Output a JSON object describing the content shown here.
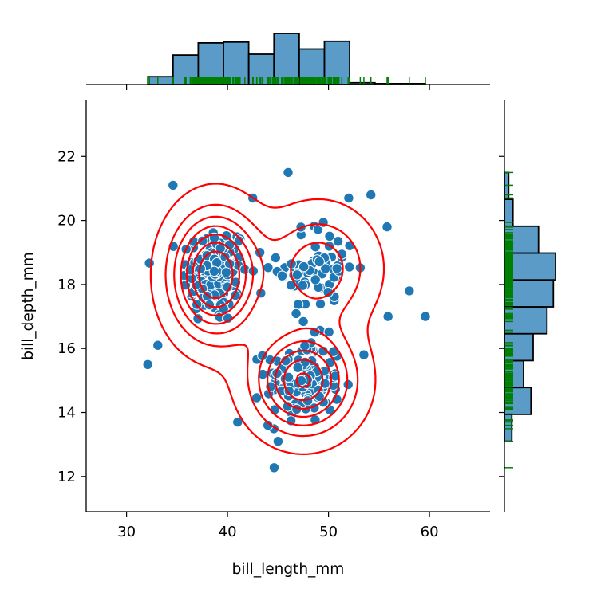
{
  "chart_data": {
    "type": "scatter",
    "subtype": "jointplot",
    "xlabel": "bill_length_mm",
    "ylabel": "bill_depth_mm",
    "xlim": [
      26,
      66
    ],
    "ylim": [
      10.9,
      23.75
    ],
    "xticks": [
      "30",
      "40",
      "50",
      "60"
    ],
    "yticks": [
      "12",
      "14",
      "16",
      "18",
      "20",
      "22"
    ],
    "grid": false,
    "point_color": "#1f77b4",
    "hist_color": "#5b9bc8",
    "contour_color": "#ff0000",
    "rug_color": "#008000",
    "clusters": [
      {
        "cx": 38.8,
        "cy": 18.3,
        "sx": 2.7,
        "sy": 1.2,
        "n": 146
      },
      {
        "cx": 47.5,
        "cy": 15.0,
        "sx": 3.1,
        "sy": 1.0,
        "n": 119
      },
      {
        "cx": 49.0,
        "cy": 18.5,
        "sx": 3.3,
        "sy": 1.1,
        "n": 68
      }
    ],
    "outliers": [
      [
        32.1,
        15.5
      ],
      [
        33.1,
        16.1
      ],
      [
        34.6,
        21.1
      ],
      [
        35.9,
        19.1
      ],
      [
        46.0,
        21.5
      ],
      [
        42.5,
        20.7
      ],
      [
        43.2,
        19.0
      ],
      [
        52.0,
        20.7
      ],
      [
        54.2,
        20.8
      ],
      [
        55.8,
        19.8
      ],
      [
        58.0,
        17.8
      ],
      [
        59.6,
        17.0
      ],
      [
        55.9,
        17.0
      ],
      [
        53.5,
        15.8
      ],
      [
        46.9,
        18.3
      ],
      [
        44.0,
        13.6
      ],
      [
        41.0,
        13.7
      ],
      [
        45.0,
        13.1
      ],
      [
        49.1,
        14.5
      ],
      [
        50.5,
        15.9
      ]
    ],
    "x_hist": {
      "bins": [
        32.1,
        34.6,
        37.1,
        39.6,
        42.1,
        44.6,
        47.1,
        49.6,
        52.1,
        54.6,
        57.1,
        59.6
      ],
      "counts": [
        9,
        34,
        48,
        49,
        35,
        59,
        41,
        50,
        2,
        1,
        1
      ]
    },
    "y_hist": {
      "bins": [
        13.1,
        13.94,
        14.78,
        15.62,
        16.46,
        17.3,
        18.14,
        18.98,
        19.82,
        20.66,
        21.5
      ],
      "counts": [
        7,
        25,
        18,
        27,
        40,
        46,
        48,
        32,
        8,
        4
      ]
    },
    "contour_levels": 7
  }
}
